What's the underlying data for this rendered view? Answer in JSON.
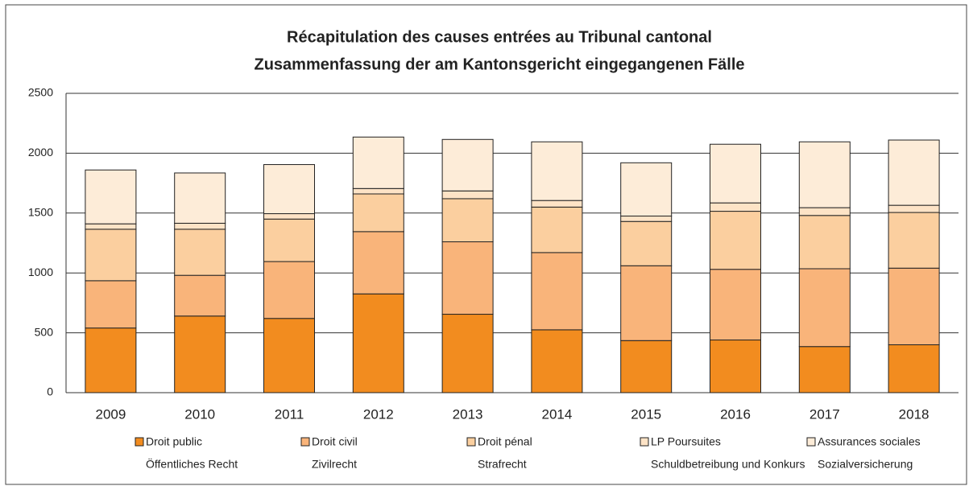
{
  "chart_data": {
    "type": "stacked_bar",
    "title": [
      "Récapitulation des causes entrées au Tribunal cantonal",
      "Zusammenfassung der am Kantonsgericht eingegangenen Fälle"
    ],
    "categories": [
      "2009",
      "2010",
      "2011",
      "2012",
      "2013",
      "2014",
      "2015",
      "2016",
      "2017",
      "2018"
    ],
    "series": [
      {
        "name": [
          "Droit public",
          "Öffentliches Recht"
        ],
        "color": "#f28c1f",
        "values": [
          540,
          640,
          620,
          825,
          655,
          525,
          435,
          440,
          385,
          400
        ]
      },
      {
        "name": [
          "Droit civil",
          "Zivilrecht"
        ],
        "color": "#f9b47a",
        "values": [
          395,
          340,
          475,
          520,
          605,
          645,
          625,
          590,
          650,
          640
        ]
      },
      {
        "name": [
          "Droit pénal",
          "Strafrecht"
        ],
        "color": "#fbcf9f",
        "values": [
          430,
          385,
          355,
          315,
          360,
          380,
          370,
          485,
          445,
          465
        ]
      },
      {
        "name": [
          "LP Poursuites",
          "Schuldbetreibung und Konkurs"
        ],
        "color": "#fde3c6",
        "values": [
          45,
          50,
          45,
          45,
          65,
          55,
          45,
          70,
          65,
          60
        ]
      },
      {
        "name": [
          "Assurances sociales",
          "Sozialversicherung"
        ],
        "color": "#fdecd8",
        "values": [
          450,
          420,
          410,
          430,
          430,
          490,
          445,
          490,
          550,
          545
        ]
      }
    ],
    "ylim": [
      0,
      2500
    ],
    "yticks": [
      0,
      500,
      1000,
      1500,
      2000,
      2500
    ],
    "grid": true
  }
}
